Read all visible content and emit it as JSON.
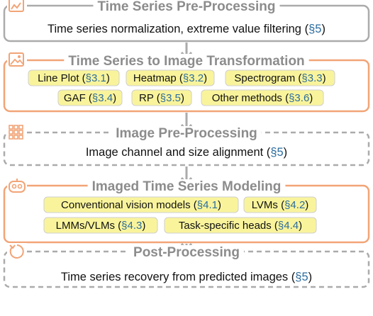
{
  "stages": [
    {
      "title": "Time Series Pre-Processing",
      "description": [
        "Time series normalization, extreme value filtering (",
        "§5",
        ")"
      ]
    },
    {
      "title": "Time Series to Image Transformation",
      "tags": [
        [
          "Line Plot (",
          "§3.1",
          ")"
        ],
        [
          "Heatmap (",
          "§3.2",
          ")"
        ],
        [
          "Spectrogram (",
          "§3.3",
          ")"
        ],
        [
          "GAF (",
          "§3.4",
          ")"
        ],
        [
          "RP (",
          "§3.5",
          ")"
        ],
        [
          "Other methods (",
          "§3.6",
          ")"
        ]
      ]
    },
    {
      "title": "Image Pre-Processing",
      "description": [
        "Image channel and size alignment (",
        "§5",
        ")"
      ]
    },
    {
      "title": "Imaged Time Series Modeling",
      "tags": [
        [
          "Conventional vision models (",
          "§4.1",
          ")"
        ],
        [
          "LVMs (",
          "§4.2",
          ")"
        ],
        [
          "LMMs/VLMs (",
          "§4.3",
          ")"
        ],
        [
          "Task-specific heads (",
          "§4.4",
          ")"
        ]
      ]
    },
    {
      "title": "Post-Processing",
      "description": [
        "Time series recovery from predicted images (",
        "§5",
        ")"
      ]
    }
  ]
}
